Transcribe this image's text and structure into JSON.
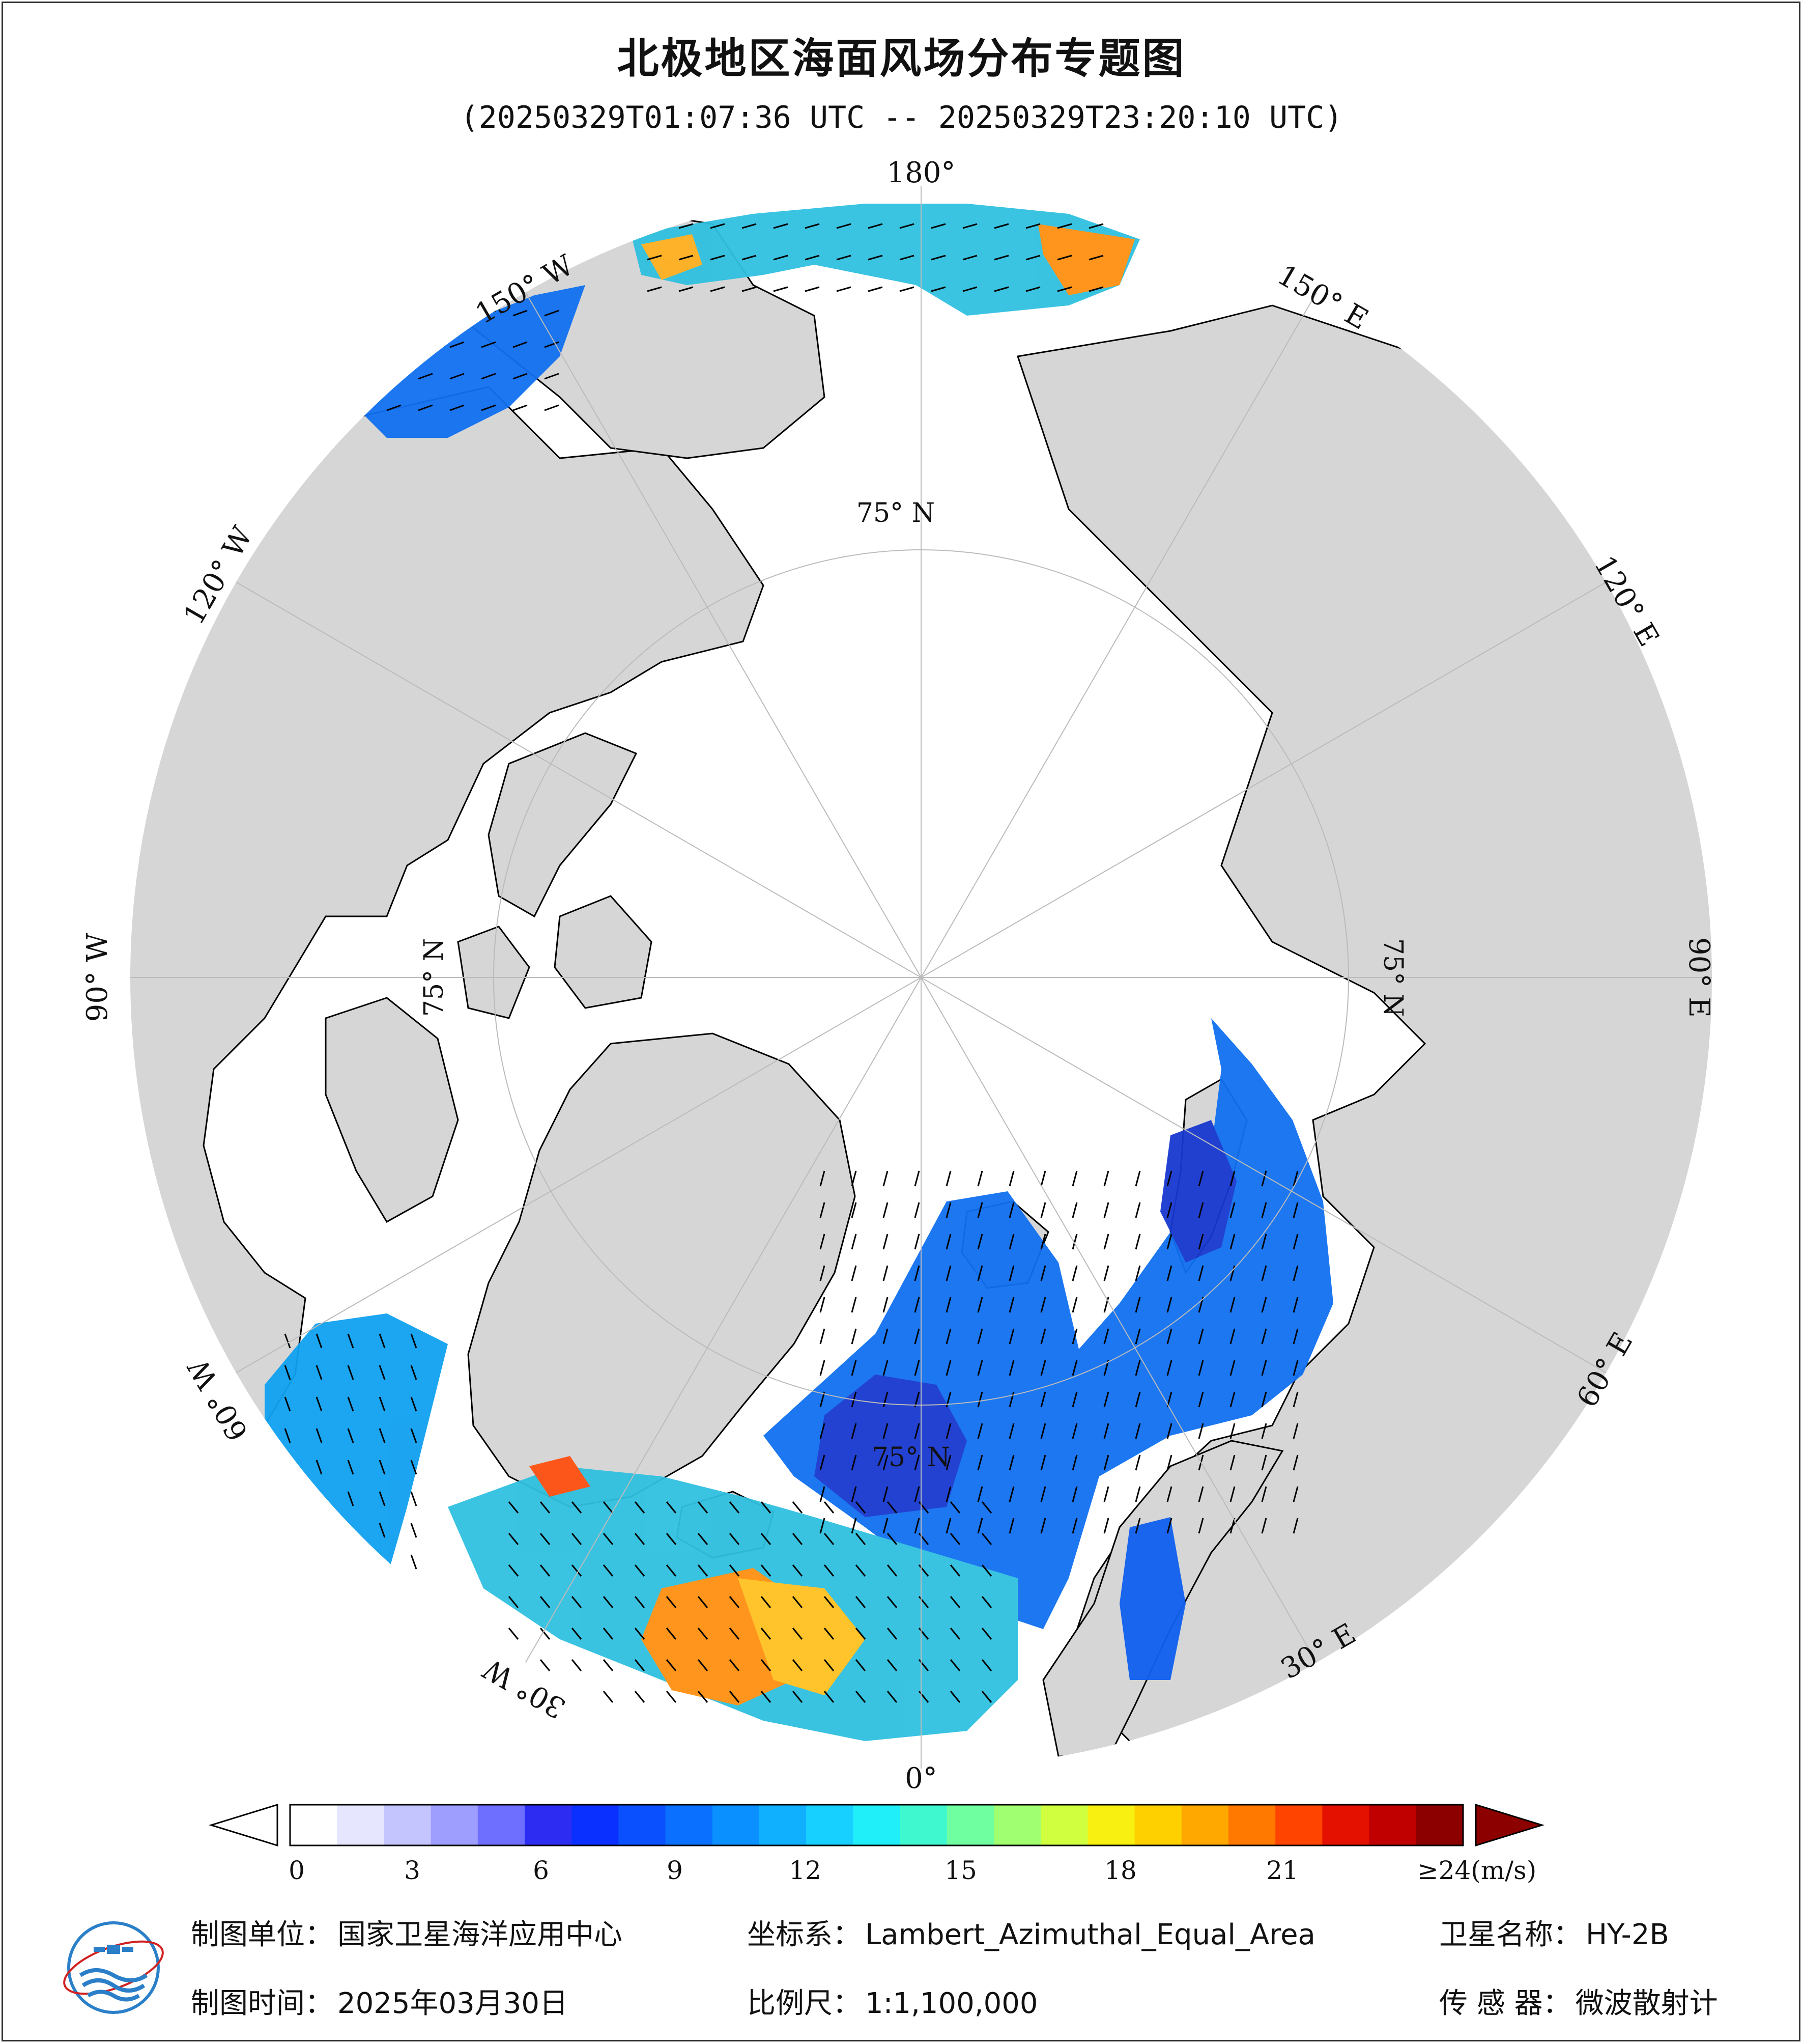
{
  "title": "北极地区海面风场分布专题图",
  "subtitle": "(20250329T01:07:36 UTC -- 20250329T23:20:10 UTC)",
  "map": {
    "projection_note": "Lambert_Azimuthal_Equal_Area",
    "lon_labels": {
      "lon_180": "180°",
      "lon_150e": "150° E",
      "lon_120e": "120° E",
      "lon_90e": "90° E",
      "lon_60e": "60° E",
      "lon_30e": "30° E",
      "lon_0": "0°",
      "lon_30w": "30° W",
      "lon_60w": "60° W",
      "lon_90w": "90° W",
      "lon_120w": "120° W",
      "lon_150w": "150° W"
    },
    "lat_labels": {
      "lat_75_top": "75° N",
      "lat_75_left": "75° N",
      "lat_75_right": "75° N",
      "lat_75_bottom": "75° N"
    },
    "colors": {
      "land": "#d6d6d6",
      "ocean": "#ffffff",
      "coast": "#000000",
      "graticule": "#bbbbbb"
    }
  },
  "colorbar": {
    "ticks": [
      "0",
      "3",
      "6",
      "9",
      "12",
      "15",
      "18",
      "21",
      "≥24(m/s)"
    ],
    "colors": [
      "#ffffff",
      "#e6e6ff",
      "#c4c4ff",
      "#9e9eff",
      "#6e6eff",
      "#2c2cf2",
      "#0a30ff",
      "#0a50ff",
      "#0a70ff",
      "#0a90ff",
      "#10b0ff",
      "#18d0ff",
      "#20eef8",
      "#40f8d0",
      "#70ffa0",
      "#a0ff70",
      "#d0ff40",
      "#f8f010",
      "#ffd000",
      "#ffa800",
      "#ff7800",
      "#ff4400",
      "#e41000",
      "#c00000",
      "#8c0000"
    ],
    "min_arrow_color": "#ffffff",
    "max_arrow_color": "#8c0000"
  },
  "footer": {
    "org_label": "制图单位：",
    "org_value": "国家卫星海洋应用中心",
    "date_label": "制图时间：",
    "date_value": "2025年03月30日",
    "crs_label": "坐标系：",
    "crs_value": "Lambert_Azimuthal_Equal_Area",
    "scale_label": "比例尺：",
    "scale_value": "1:1,100,000",
    "satellite_label": "卫星名称：",
    "satellite_value": "HY-2B",
    "sensor_label": "传 感 器：",
    "sensor_value": "微波散射计"
  }
}
